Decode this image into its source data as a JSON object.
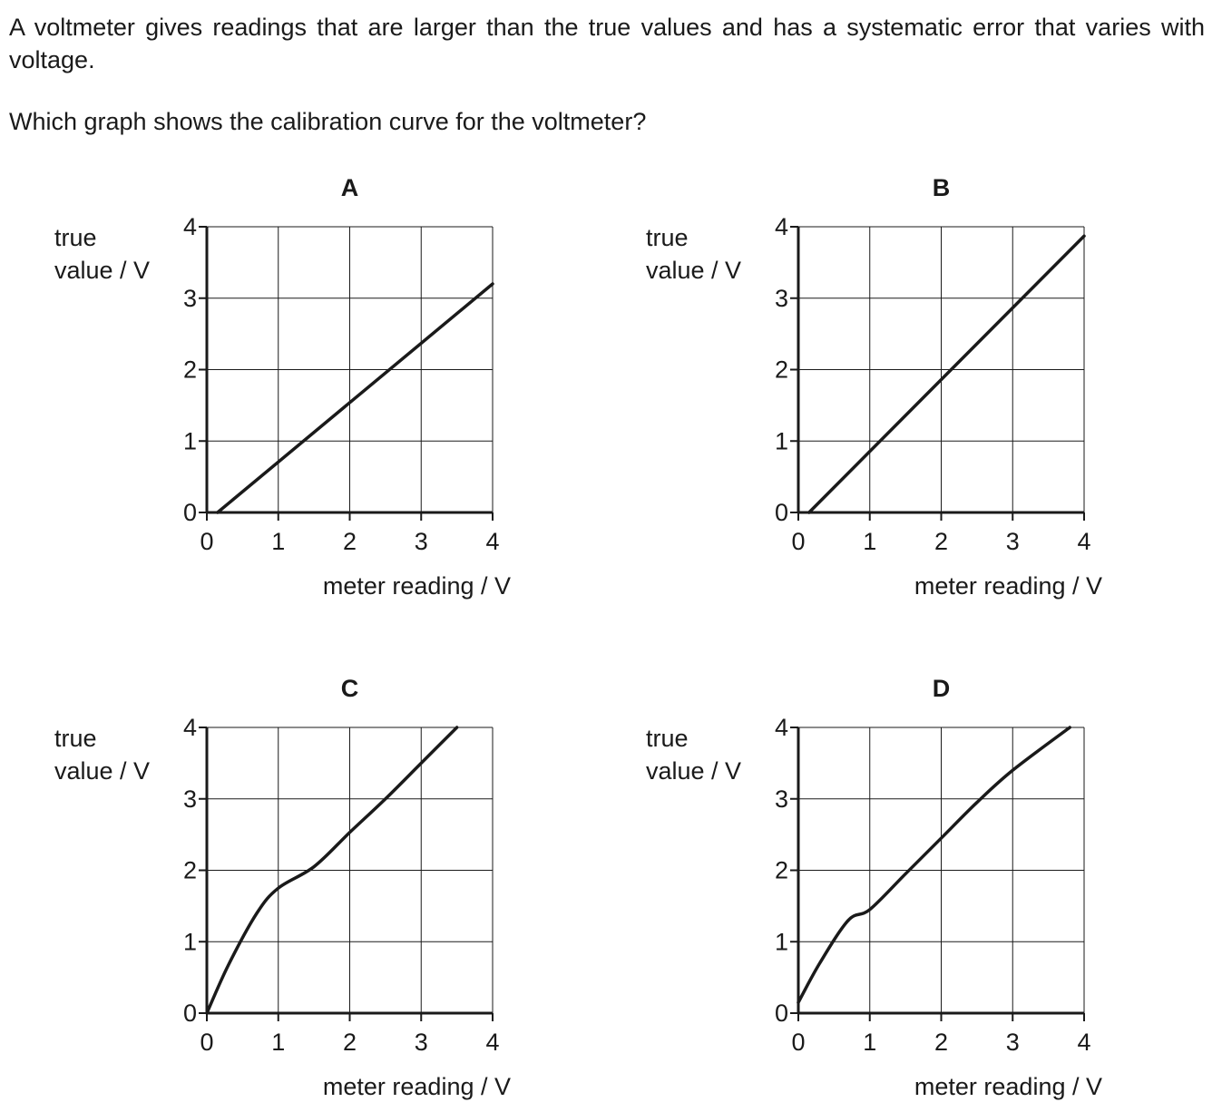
{
  "question": {
    "stem": "A voltmeter gives readings that are larger than the true values and has a systematic error that varies with voltage.",
    "prompt": "Which graph shows the calibration curve for the voltmeter?"
  },
  "chart_data": [
    {
      "type": "line",
      "title": "A",
      "xlabel": "meter reading / V",
      "ylabel_lines": [
        "true",
        "value / V"
      ],
      "xlim": [
        0,
        4
      ],
      "ylim": [
        0,
        4
      ],
      "xticks": [
        0,
        1,
        2,
        3,
        4
      ],
      "yticks": [
        0,
        1,
        2,
        3,
        4
      ],
      "grid": true,
      "series": [
        {
          "x": [
            0.15,
            4.0
          ],
          "y": [
            0.0,
            3.2
          ]
        }
      ]
    },
    {
      "type": "line",
      "title": "B",
      "xlabel": "meter reading / V",
      "ylabel_lines": [
        "true",
        "value / V"
      ],
      "xlim": [
        0,
        4
      ],
      "ylim": [
        0,
        4
      ],
      "xticks": [
        0,
        1,
        2,
        3,
        4
      ],
      "yticks": [
        0,
        1,
        2,
        3,
        4
      ],
      "grid": true,
      "series": [
        {
          "x": [
            0.15,
            4.0
          ],
          "y": [
            0.0,
            3.87
          ]
        }
      ]
    },
    {
      "type": "line",
      "title": "C",
      "xlabel": "meter reading / V",
      "ylabel_lines": [
        "true",
        "value / V"
      ],
      "xlim": [
        0,
        4
      ],
      "ylim": [
        0,
        4
      ],
      "xticks": [
        0,
        1,
        2,
        3,
        4
      ],
      "yticks": [
        0,
        1,
        2,
        3,
        4
      ],
      "grid": true,
      "series": [
        {
          "x": [
            0,
            0.3,
            0.7,
            1.0,
            1.5,
            2.0,
            2.5,
            3.0,
            3.5
          ],
          "y": [
            0,
            0.67,
            1.4,
            1.75,
            2.05,
            2.53,
            3.0,
            3.5,
            4.0
          ]
        }
      ]
    },
    {
      "type": "line",
      "title": "D",
      "xlabel": "meter reading / V",
      "ylabel_lines": [
        "true",
        "value / V"
      ],
      "xlim": [
        0,
        4
      ],
      "ylim": [
        0,
        4
      ],
      "xticks": [
        0,
        1,
        2,
        3,
        4
      ],
      "yticks": [
        0,
        1,
        2,
        3,
        4
      ],
      "grid": true,
      "series": [
        {
          "x": [
            0,
            0.3,
            0.7,
            1.0,
            1.5,
            2.0,
            2.5,
            3.0,
            3.8
          ],
          "y": [
            0.15,
            0.7,
            1.3,
            1.45,
            1.95,
            2.45,
            2.95,
            3.4,
            4.0
          ]
        }
      ]
    }
  ]
}
